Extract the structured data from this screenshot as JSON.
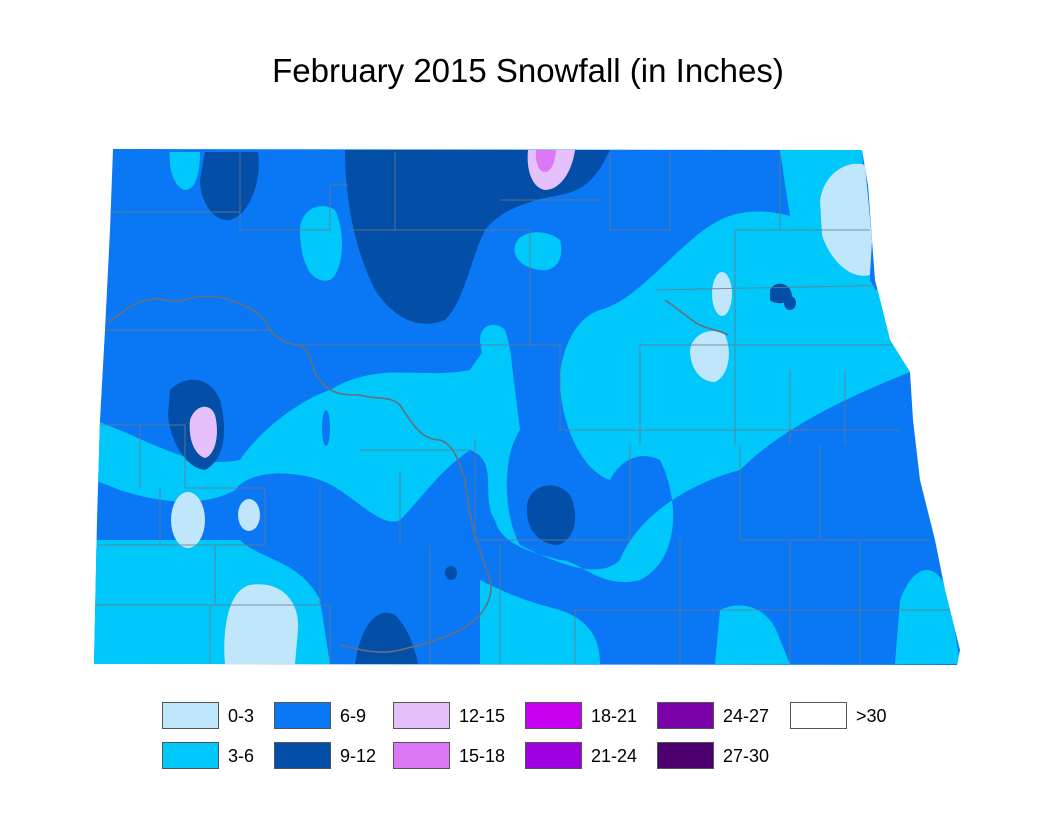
{
  "title": "February 2015 Snowfall (in Inches)",
  "legend": [
    {
      "label": "0-3",
      "color": "#c0e6fb"
    },
    {
      "label": "3-6",
      "color": "#00c8fa"
    },
    {
      "label": "6-9",
      "color": "#0a78f5"
    },
    {
      "label": "9-12",
      "color": "#034ea6"
    },
    {
      "label": "12-15",
      "color": "#e6c0fa"
    },
    {
      "label": "15-18",
      "color": "#dc78f5"
    },
    {
      "label": "18-21",
      "color": "#c800f0"
    },
    {
      "label": "21-24",
      "color": "#a000e0"
    },
    {
      "label": "24-27",
      "color": "#7a00a8"
    },
    {
      "label": "27-30",
      "color": "#4b006e"
    },
    {
      "label": ">30",
      "color": "#ffffff"
    }
  ]
}
